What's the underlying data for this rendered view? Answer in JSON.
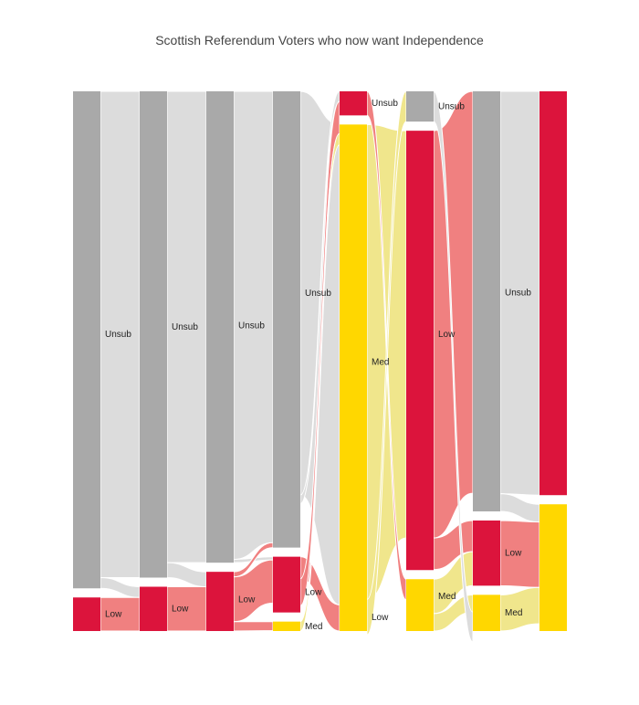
{
  "chart_data": {
    "type": "sankey",
    "title": "Scottish Referendum Voters who now want Independence",
    "colors": {
      "Unsub": "#a9a9a9",
      "Low": "#dc143c",
      "Med": "#ffd700",
      "link_Unsub": "#dcdcdc",
      "link_Low": "#f08080",
      "link_Med": "#f0e68c",
      "link_gap": "#ffffff"
    },
    "stages": [
      {
        "nodes": {
          "Unsub": 1066,
          "Low": 72,
          "Med": 0
        }
      },
      {
        "nodes": {
          "Unsub": 1043,
          "Low": 95,
          "Med": 0
        }
      },
      {
        "nodes": {
          "Unsub": 1011,
          "Low": 127,
          "Med": 0
        }
      },
      {
        "nodes": {
          "Unsub": 1015,
          "Low": 124,
          "Med": 21
        }
      },
      {
        "nodes": {
          "Unsub": 0,
          "Low": 45,
          "Med": 947
        }
      },
      {
        "nodes": {
          "Unsub": 66,
          "Low": 958,
          "Med": 113
        }
      },
      {
        "nodes": {
          "Unsub": 928,
          "Low": 144,
          "Med": 80
        }
      },
      {
        "nodes": {
          "Unsub": 0,
          "Low": 889,
          "Med": 279
        }
      }
    ],
    "links": [
      [
        {
          "source": "Unsub",
          "target": "Unsub",
          "value": 1043,
          "label": "Unsub"
        },
        {
          "source": "Unsub",
          "target": "Low",
          "value": 23,
          "label": ""
        },
        {
          "source": "Low",
          "target": "Low",
          "value": 72,
          "label": "Low"
        }
      ],
      [
        {
          "source": "Unsub",
          "target": "Unsub",
          "value": 1011,
          "label": "Unsub"
        },
        {
          "source": "Unsub",
          "target": "Low",
          "value": 32,
          "label": ""
        },
        {
          "source": "Low",
          "target": "Low",
          "value": 95,
          "label": "Low"
        }
      ],
      [
        {
          "source": "Unsub",
          "target": "Unsub",
          "value": 1004,
          "label": "Unsub"
        },
        {
          "source": "Unsub",
          "target": "Low",
          "value": 7,
          "label": ""
        },
        {
          "source": "Low",
          "target": "Unsub",
          "value": 11,
          "label": ""
        },
        {
          "source": "Low",
          "target": "Low",
          "value": 96,
          "label": "Low"
        },
        {
          "source": "Low",
          "target": "Med",
          "value": 20,
          "label": ""
        }
      ],
      [
        {
          "source": "Unsub",
          "target": "Med",
          "value": 898,
          "label": "Unsub"
        },
        {
          "source": "Unsub",
          "target": "Low",
          "value": 19,
          "label": ""
        },
        {
          "source": "Low",
          "target": "Med",
          "value": 49,
          "label": ""
        },
        {
          "source": "Low",
          "target": "Low",
          "value": 60,
          "label": "Low"
        },
        {
          "source": "Med",
          "target": "Low",
          "value": 21,
          "label": "Med"
        }
      ],
      [
        {
          "source": "Med",
          "target": "Low",
          "value": 888,
          "label": "Med"
        },
        {
          "source": "Low",
          "target": "Med",
          "value": 45,
          "label": "Unsub"
        },
        {
          "source": "Med",
          "target": "Unsub",
          "value": 66,
          "label": "Low"
        }
      ],
      [
        {
          "source": "Low",
          "target": "Unsub",
          "value": 888,
          "label": "Low"
        },
        {
          "source": "Low",
          "target": "Low",
          "value": 69,
          "label": ""
        },
        {
          "source": "Med",
          "target": "Low",
          "value": 75,
          "label": "Med"
        },
        {
          "source": "Med",
          "target": "Med",
          "value": 38,
          "label": ""
        },
        {
          "source": "Unsub",
          "target": "Med",
          "value": 66,
          "label": "Unsub"
        }
      ],
      [
        {
          "source": "Unsub",
          "target": "Low",
          "value": 889,
          "label": "Unsub"
        },
        {
          "source": "Unsub",
          "target": "Med",
          "value": 39,
          "label": ""
        },
        {
          "source": "Low",
          "target": "Med",
          "value": 144,
          "label": "Low"
        },
        {
          "source": "Med",
          "target": "Med",
          "value": 80,
          "label": "Med"
        }
      ]
    ],
    "node_labels": [
      "Unsub",
      "Low",
      "Med"
    ],
    "link_labels": [
      "Unsub",
      "Unsub",
      "Unsub",
      "Unsub",
      "Med",
      "Low",
      "Unsub",
      "Low",
      "Low",
      "Low",
      "Low",
      "Low",
      "Unsub",
      "Med",
      "Low",
      "Med",
      "Unsub",
      "Med",
      "Low",
      "Unsub",
      "Med"
    ]
  }
}
